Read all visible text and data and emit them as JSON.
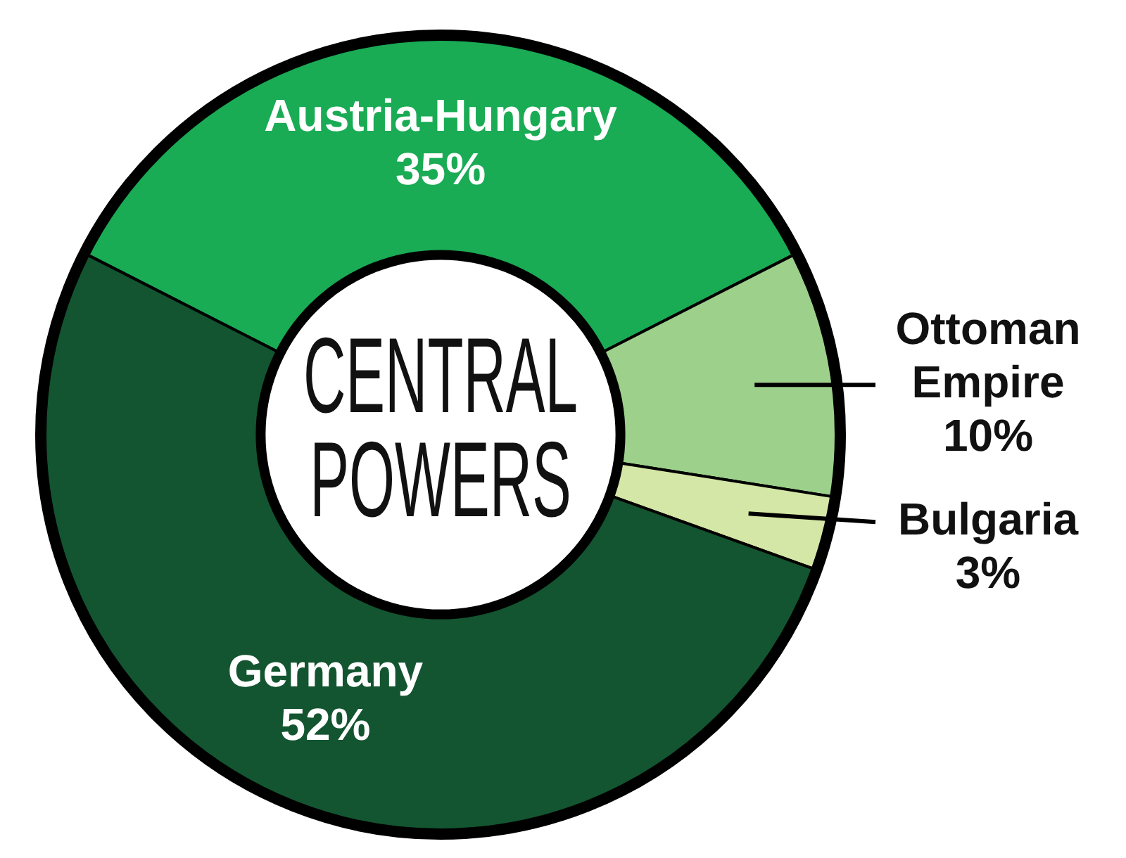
{
  "chart_data": {
    "type": "donut",
    "title": "CENTRAL POWERS",
    "categories": [
      "Austria-Hungary",
      "Ottoman Empire",
      "Bulgaria",
      "Germany"
    ],
    "values": [
      35,
      10,
      3,
      52
    ],
    "colors": [
      "#1aab55",
      "#9dd18b",
      "#d5e7a6",
      "#135530"
    ],
    "value_labels": [
      "35%",
      "10%",
      "3%",
      "52%"
    ],
    "legend": false
  }
}
